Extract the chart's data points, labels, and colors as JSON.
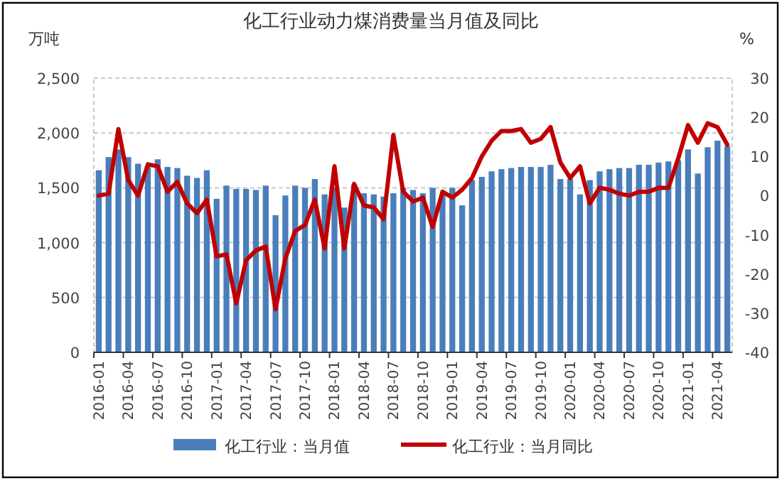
{
  "chart_data": {
    "type": "bar",
    "title": "化工行业动力煤消费量当月值及同比",
    "ylabel": "万吨",
    "y2label": "%",
    "categories": [
      "2016-01",
      null,
      null,
      "2016-04",
      null,
      null,
      "2016-07",
      null,
      null,
      "2016-10",
      null,
      null,
      "2017-01",
      null,
      null,
      "2017-04",
      null,
      null,
      "2017-07",
      null,
      null,
      "2017-10",
      null,
      null,
      "2018-01",
      null,
      null,
      "2018-04",
      null,
      null,
      "2018-07",
      null,
      null,
      "2018-10",
      null,
      null,
      "2019-01",
      null,
      null,
      "2019-04",
      null,
      null,
      "2019-07",
      null,
      null,
      "2019-10",
      null,
      null,
      "2020-01",
      null,
      null,
      "2020-04",
      null,
      null,
      "2020-07",
      null,
      null,
      "2020-10",
      null,
      null,
      "2021-01",
      null,
      null,
      "2021-04",
      null
    ],
    "series": [
      {
        "name": "化工行业：当月值",
        "color": "#4a7ebb",
        "values": [
          1660,
          1780,
          1850,
          1780,
          1720,
          1700,
          1760,
          1690,
          1680,
          1610,
          1590,
          1660,
          1400,
          1520,
          1490,
          1490,
          1480,
          1520,
          1250,
          1430,
          1520,
          1500,
          1580,
          1440,
          1500,
          1320,
          1530,
          1450,
          1440,
          1420,
          1450,
          1500,
          1480,
          1450,
          1500,
          1430,
          1500,
          1340,
          1570,
          1600,
          1650,
          1670,
          1680,
          1690,
          1690,
          1690,
          1710,
          1580,
          1580,
          1440,
          1570,
          1650,
          1670,
          1680,
          1680,
          1710,
          1710,
          1730,
          1740,
          1750,
          1850,
          1630,
          1870,
          1930,
          1880
        ]
      },
      {
        "name": "化工行业：当月同比",
        "type": "line",
        "axis": "y2",
        "color": "#c00000",
        "values": [
          0,
          0.5,
          17,
          4,
          0,
          8,
          7.5,
          1,
          3.5,
          -2,
          -4.5,
          -1,
          -15.5,
          -15,
          -27.5,
          -16.5,
          -14,
          -13,
          -29,
          -16,
          -9,
          -7.5,
          -1,
          -13.5,
          7.5,
          -13.5,
          3,
          -2.5,
          -3,
          -6,
          15.5,
          1,
          -1.5,
          -0.5,
          -8,
          1,
          -0.5,
          1.5,
          4.5,
          10,
          14,
          16.5,
          16.5,
          17,
          13.5,
          14.5,
          17.5,
          8.5,
          4.5,
          7.5,
          -2,
          2,
          1.5,
          0.5,
          0,
          1,
          1,
          2,
          2,
          9.5,
          18,
          13.5,
          18.5,
          17.5,
          13
        ]
      }
    ],
    "ylim": [
      0,
      2500
    ],
    "yticks": [
      {
        "value": 0,
        "label": "0"
      },
      {
        "value": 500,
        "label": "500"
      },
      {
        "value": 1000,
        "label": "1,000"
      },
      {
        "value": 1500,
        "label": "1,500"
      },
      {
        "value": 2000,
        "label": "2,000"
      },
      {
        "value": 2500,
        "label": "2,500"
      }
    ],
    "y2lim": [
      -40,
      30
    ],
    "y2ticks": [
      -40,
      -30,
      -20,
      -10,
      0,
      10,
      20,
      30
    ],
    "grid": "y",
    "legend": "bottom"
  }
}
